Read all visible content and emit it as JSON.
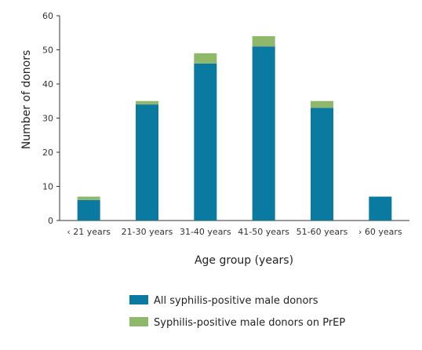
{
  "chart_data": {
    "type": "bar",
    "stacked": true,
    "categories": [
      "‹ 21 years",
      "21-30 years",
      "31-40 years",
      "41-50 years",
      "51-60 years",
      "› 60 years"
    ],
    "series": [
      {
        "name": "All syphilis-positive male donors",
        "values": [
          6,
          34,
          46,
          51,
          33,
          7
        ],
        "color": "#0a7aa0"
      },
      {
        "name": "Syphilis-positive male donors on PrEP",
        "values": [
          1,
          1,
          3,
          3,
          2,
          0
        ],
        "color": "#8fb86a"
      }
    ],
    "xlabel": "Age group (years)",
    "ylabel": "Number of donors",
    "ylim": [
      0,
      60
    ],
    "yticks": [
      0,
      10,
      20,
      30,
      40,
      50,
      60
    ],
    "grid": false,
    "legend_position": "bottom"
  }
}
